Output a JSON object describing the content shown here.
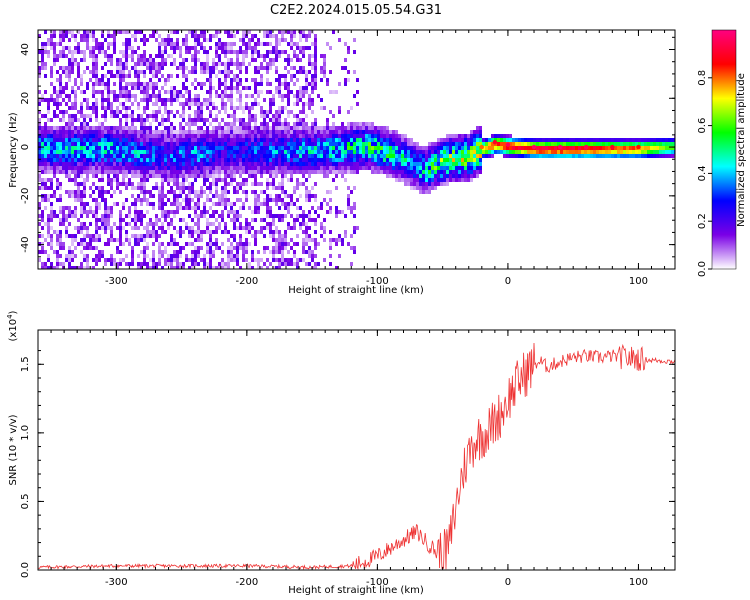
{
  "title": "C2E2.2024.015.05.54.G31",
  "chart_data": [
    {
      "type": "heatmap",
      "name": "spectrogram",
      "xlabel": "Height of straight line (km)",
      "ylabel": "Frequency (Hz)",
      "xlim": [
        -360,
        128
      ],
      "ylim": [
        -50,
        48
      ],
      "xticks": [
        -300,
        -200,
        -100,
        0,
        100
      ],
      "yticks": [
        -40,
        -20,
        0,
        20,
        40
      ],
      "ridge": {
        "x": [
          -300,
          -280,
          -260,
          -240,
          -220,
          -150,
          -130,
          -110,
          -95,
          -85,
          -75,
          -65,
          -55,
          -45,
          -30,
          -20,
          -10,
          0,
          20,
          40,
          60,
          80,
          100,
          128
        ],
        "frequency": [
          0,
          -2,
          -3,
          -2,
          -1,
          -1,
          0,
          1,
          -1,
          -3,
          -6,
          -9,
          -6,
          -4,
          -3,
          0,
          2,
          1,
          0,
          0,
          0,
          0,
          0,
          1
        ],
        "amplitude": [
          0.45,
          0.4,
          0.35,
          0.4,
          0.3,
          0.45,
          0.5,
          0.55,
          0.55,
          0.5,
          0.45,
          0.5,
          0.6,
          0.65,
          0.7,
          0.8,
          0.9,
          0.95,
          0.97,
          0.97,
          0.95,
          0.9,
          0.85,
          0.6
        ]
      },
      "colorbar": {
        "label": "Normalized spectral amplitude",
        "range": [
          0.0,
          1.0
        ],
        "ticks": [
          "0.0",
          "0.2",
          "0.4",
          "0.6",
          "0.8"
        ],
        "colors": [
          "#ffffff",
          "#7a00e6",
          "#0000ff",
          "#00ffff",
          "#00ff00",
          "#ffff00",
          "#ff0000",
          "#ff0080"
        ]
      }
    },
    {
      "type": "line",
      "name": "snr",
      "xlabel": "Height of straight line (km)",
      "ylabel": "SNR (10 * v/v)",
      "multiplier": "(x10",
      "multiplier_exp": "4",
      "multiplier_close": ")",
      "xlim": [
        -360,
        128
      ],
      "ylim": [
        0.0,
        1.75
      ],
      "xticks": [
        -300,
        -200,
        -100,
        0,
        100
      ],
      "yticks": [
        "0.0",
        "0.5",
        "1.0",
        "1.5"
      ],
      "color": "#ee3333",
      "x": [
        -360,
        -300,
        -250,
        -200,
        -150,
        -120,
        -110,
        -100,
        -90,
        -80,
        -70,
        -60,
        -50,
        -45,
        -40,
        -35,
        -30,
        -25,
        -20,
        -15,
        -10,
        -5,
        0,
        10,
        20,
        25,
        30,
        40,
        50,
        60,
        70,
        80,
        90,
        100,
        110,
        128
      ],
      "y": [
        0.02,
        0.03,
        0.03,
        0.03,
        0.02,
        0.03,
        0.06,
        0.1,
        0.16,
        0.22,
        0.28,
        0.18,
        0.1,
        0.18,
        0.45,
        0.7,
        0.85,
        0.95,
        0.98,
        1.02,
        1.08,
        1.15,
        1.25,
        1.4,
        1.5,
        1.52,
        1.48,
        1.52,
        1.55,
        1.56,
        1.55,
        1.56,
        1.55,
        1.54,
        1.53,
        1.52
      ]
    }
  ]
}
